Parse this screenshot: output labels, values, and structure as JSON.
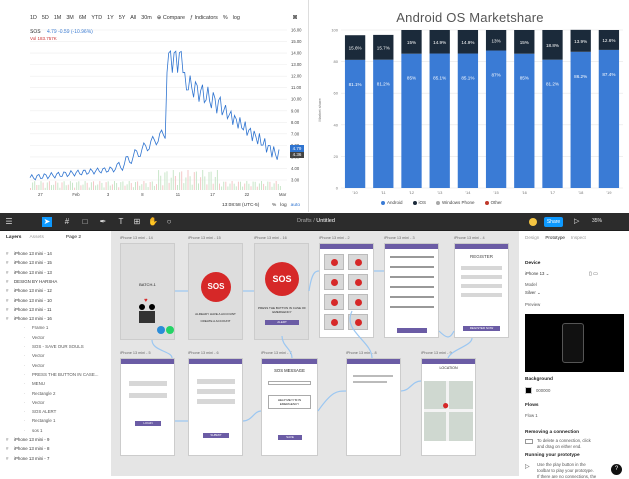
{
  "stock": {
    "toolbar": [
      "1D",
      "5D",
      "1M",
      "3M",
      "6M",
      "YTD",
      "1Y",
      "5Y",
      "All",
      "30m",
      "Compare",
      "Indicators",
      "%",
      "log"
    ],
    "symbol": "SOS",
    "change": "4.79 -0.59 (-10.96%)",
    "volume": "Vol 183.757K",
    "price_badge": "4.79",
    "price_badge2": "4.36",
    "y_ticks": [
      "16.00",
      "15.00",
      "14.00",
      "13.00",
      "12.00",
      "11.00",
      "10.00",
      "9.00",
      "8.00",
      "7.00",
      "6.00",
      "5.00",
      "4.00",
      "3.00"
    ],
    "x_ticks": [
      "27",
      "Feb",
      "3",
      "8",
      "11",
      "17",
      "22",
      "Mar"
    ],
    "time": "13:08:58 (UTC-5)",
    "footer_opts": [
      "%",
      "log",
      "auto"
    ],
    "colors": {
      "line": "#2f74d0",
      "badge": "#2f74d0"
    }
  },
  "chart_data": {
    "type": "bar",
    "title": "Android OS Marketshare",
    "ylabel": "Market share",
    "categories": [
      "'10",
      "'11",
      "'12",
      "'13",
      "'14",
      "'15",
      "'16",
      "'17",
      "'18",
      "'19"
    ],
    "series": [
      {
        "name": "Android",
        "values": [
          81.1,
          81.2,
          85,
          85.1,
          85.1,
          87,
          85,
          81.2,
          86.2,
          87.4
        ],
        "labels": [
          "81.1%",
          "81.2%",
          "85%",
          "85.1%",
          "85.1%",
          "87%",
          "85%",
          "81.2%",
          "86.2%",
          "87.4%"
        ],
        "color": "#3a7bd5"
      },
      {
        "name": "iOS",
        "values": [
          15.6,
          15.7,
          15,
          14.9,
          14.9,
          13,
          15,
          18.8,
          13.9,
          12.6
        ],
        "labels": [
          "15.6%",
          "15.7%",
          "15%",
          "14.9%",
          "14.9%",
          "13%",
          "15%",
          "18.8%",
          "13.9%",
          "12.6%"
        ],
        "color": "#1b2a3a"
      },
      {
        "name": "Windows Phone",
        "values": [
          0,
          0,
          0,
          0,
          0,
          0,
          0,
          0,
          0,
          0
        ],
        "color": "#a8a8a8"
      },
      {
        "name": "Other",
        "values": [
          0,
          0,
          0,
          0,
          0,
          0,
          0,
          0,
          0,
          0
        ],
        "color": "#c0392b"
      }
    ],
    "ylim": [
      0,
      100
    ],
    "y_ticks": [
      "100",
      "80",
      "60",
      "40",
      "20",
      "0"
    ],
    "grid": true,
    "legend": "bottom"
  },
  "figma": {
    "title_prefix": "Drafts /",
    "title": "Untitled",
    "share": "Share",
    "zoom": "35%",
    "left_tabs": [
      "Layers",
      "Assets",
      "Page 2"
    ],
    "layers": [
      {
        "label": "iPhone 13 mini - 14",
        "child": false
      },
      {
        "label": "iPhone 13 mini - 15",
        "child": false
      },
      {
        "label": "iPhone 13 mini - 13",
        "child": false
      },
      {
        "label": "DESIGN BY HARSHA",
        "child": false
      },
      {
        "label": "iPhone 13 mini - 12",
        "child": false
      },
      {
        "label": "iPhone 13 mini - 10",
        "child": false
      },
      {
        "label": "iPhone 13 mini - 11",
        "child": false
      },
      {
        "label": "iPhone 13 mini - 16",
        "child": false
      },
      {
        "label": "Frame 1",
        "child": true
      },
      {
        "label": "Vector",
        "child": true
      },
      {
        "label": "SOS - SAVE OUR SOULS",
        "child": true
      },
      {
        "label": "Vector",
        "child": true
      },
      {
        "label": "Vector",
        "child": true
      },
      {
        "label": "PRESS THE BUTTON IN CASE...",
        "child": true
      },
      {
        "label": "MENU",
        "child": true
      },
      {
        "label": "Rectangle 2",
        "child": true
      },
      {
        "label": "Vector",
        "child": true
      },
      {
        "label": "SOS ALERT",
        "child": true
      },
      {
        "label": "Rectangle 1",
        "child": true
      },
      {
        "label": "sos 1",
        "child": true
      },
      {
        "label": "iPhone 13 mini - 9",
        "child": false
      },
      {
        "label": "iPhone 13 mini - 8",
        "child": false
      },
      {
        "label": "iPhone 13 mini - 7",
        "child": false
      }
    ],
    "right_tabs": [
      "Design",
      "Prototype",
      "Inspect"
    ],
    "device_header": "Device",
    "device": "iPhone 13",
    "model_label": "Model",
    "model": "Silver",
    "preview_label": "Preview",
    "bg_header": "Background",
    "bg_value": "000000",
    "flows_header": "Flows",
    "flow": "Flow 1",
    "removing_header": "Removing a connection",
    "removing_text": [
      "To delete a connection, click",
      "and drag on either end."
    ],
    "running_header": "Running your prototype",
    "running_text": [
      "Use the play button in the",
      "toolbar to play your prototype.",
      "If there are no connections, the"
    ],
    "help": "?",
    "frames": {
      "f14": "iPhone 13 mini - 14",
      "f15": "iPhone 13 mini - 15",
      "f16": "iPhone 13 mini - 16",
      "f2": "iPhone 13 mini - 2",
      "f3": "iPhone 13 mini - 3",
      "f4": "iPhone 13 mini - 4",
      "f5": "iPhone 13 mini - 5",
      "f6": "iPhone 13 mini - 6",
      "f7": "iPhone 13 mini - 7",
      "f8": "iPhone 13 mini - 8",
      "f9": "iPhone 13 mini - 9"
    },
    "screen_text": {
      "batch": "BATCH-1",
      "sos": "SOS",
      "already": "ALREADY HAVE A ACCOUNT",
      "create": "CREATE A ACCOUNT",
      "press": "PRESS THE BUTTON IN CASE OF EMERGENCY",
      "alert": "ALERT",
      "register": "REGISTER",
      "register_now": "REGISTER NOW",
      "login": "LOGIN",
      "submit": "SUBMIT",
      "sos_message": "SOS MESSAGE",
      "help_me": "HELP ME!! I'M IN EMERGENCY",
      "save": "SAVE",
      "location": "LOCATION"
    }
  }
}
